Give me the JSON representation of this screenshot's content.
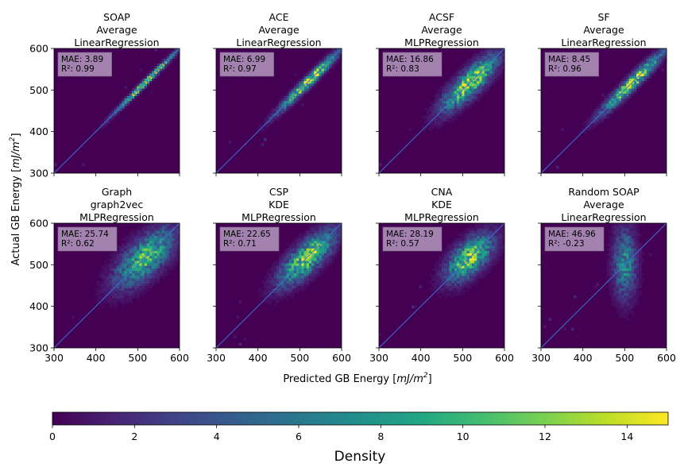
{
  "figure": {
    "xlabel": "Predicted GB Energy [mJ/m²]",
    "xlabel_parts": [
      "Predicted GB Energy [",
      "mJ/m",
      "2",
      "]"
    ],
    "ylabel": "Actual GB Energy [mJ/m²]",
    "ylabel_parts": [
      "Actual GB Energy [",
      "mJ/m",
      "2",
      "]"
    ]
  },
  "chart_data": {
    "type": "heatmap",
    "layout": "2x4 grid of 2D histograms with identity line",
    "xlim": [
      300,
      600
    ],
    "ylim": [
      300,
      600
    ],
    "ticks": [
      300,
      400,
      500,
      600
    ],
    "panels": [
      {
        "title_lines": [
          "SOAP",
          "Average",
          "LinearRegression"
        ],
        "mae_text": "MAE: 3.89",
        "r2_text": "R²: 0.99",
        "mae": 3.89,
        "r2": 0.99,
        "center": [
          520,
          520
        ],
        "spread": 4,
        "diag_sd": 45,
        "peak": 15
      },
      {
        "title_lines": [
          "ACE",
          "Average",
          "LinearRegression"
        ],
        "mae_text": "MAE: 6.99",
        "r2_text": "R²: 0.97",
        "mae": 6.99,
        "r2": 0.97,
        "center": [
          520,
          525
        ],
        "spread": 7,
        "diag_sd": 45,
        "peak": 14
      },
      {
        "title_lines": [
          "ACSF",
          "Average",
          "MLPRegression"
        ],
        "mae_text": "MAE: 16.86",
        "r2_text": "R²: 0.83",
        "mae": 16.86,
        "r2": 0.83,
        "center": [
          515,
          520
        ],
        "spread": 17,
        "diag_sd": 40,
        "peak": 13
      },
      {
        "title_lines": [
          "SF",
          "Average",
          "LinearRegression"
        ],
        "mae_text": "MAE: 8.45",
        "r2_text": "R²: 0.96",
        "mae": 8.45,
        "r2": 0.96,
        "center": [
          518,
          520
        ],
        "spread": 9,
        "diag_sd": 45,
        "peak": 14
      },
      {
        "title_lines": [
          "Graph",
          "graph2vec",
          "MLPRegression"
        ],
        "mae_text": "MAE: 25.74",
        "r2_text": "R²: 0.62",
        "mae": 25.74,
        "r2": 0.62,
        "center": [
          515,
          520
        ],
        "spread": 26,
        "diag_sd": 42,
        "peak": 10
      },
      {
        "title_lines": [
          "CSP",
          "KDE",
          "MLPRegression"
        ],
        "mae_text": "MAE: 22.65",
        "r2_text": "R²: 0.71",
        "mae": 22.65,
        "r2": 0.71,
        "center": [
          515,
          520
        ],
        "spread": 20,
        "diag_sd": 40,
        "peak": 12
      },
      {
        "title_lines": [
          "CNA",
          "KDE",
          "MLPRegression"
        ],
        "mae_text": "MAE: 28.19",
        "r2_text": "R²: 0.57",
        "mae": 28.19,
        "r2": 0.57,
        "center": [
          510,
          525
        ],
        "spread": 22,
        "diag_sd": 32,
        "peak": 12
      },
      {
        "title_lines": [
          "Random SOAP",
          "Average",
          "LinearRegression"
        ],
        "mae_text": "MAE: 46.96",
        "r2_text": "R²: -0.23",
        "mae": 46.96,
        "r2": -0.23,
        "center": [
          500,
          505
        ],
        "spread": 18,
        "diag_sd": 40,
        "peak": 7
      }
    ],
    "colorbar": {
      "label": "Density",
      "min": 0,
      "max": 15,
      "ticks": [
        0,
        2,
        4,
        6,
        8,
        10,
        12,
        14
      ],
      "colormap": "viridis"
    }
  }
}
